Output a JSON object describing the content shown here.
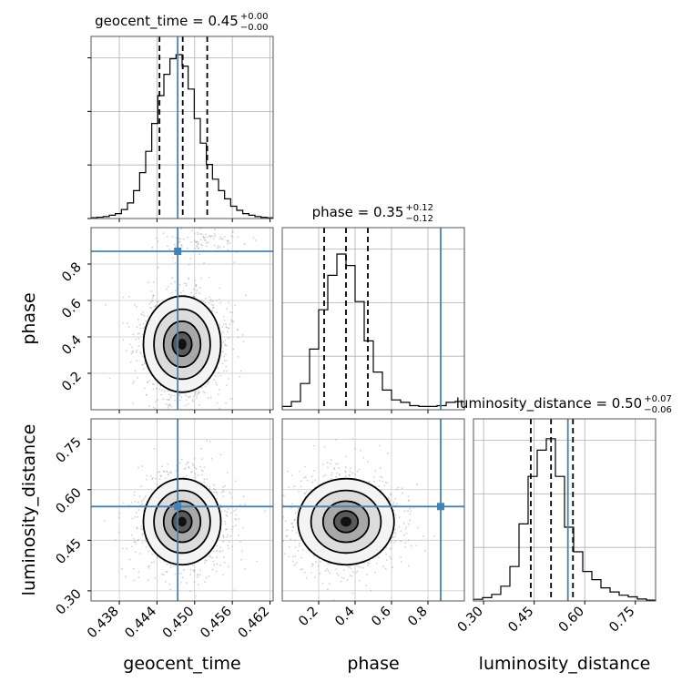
{
  "chart_data": {
    "type": "corner",
    "parameters": [
      "geocent_time",
      "phase",
      "luminosity_distance"
    ],
    "titles": [
      {
        "name": "geocent_time",
        "median": "0.45",
        "upper": "+0.00",
        "lower": "−0.00"
      },
      {
        "name": "phase",
        "median": "0.35",
        "upper": "+0.12",
        "lower": "−0.12"
      },
      {
        "name": "luminosity_distance",
        "median": "0.50",
        "upper": "+0.07",
        "lower": "−0.06"
      }
    ],
    "axes": {
      "geocent_time": {
        "range": [
          0.4335,
          0.4625
        ],
        "ticks": [
          "0.438",
          "0.444",
          "0.450",
          "0.456",
          "0.462"
        ],
        "tick_values": [
          0.438,
          0.444,
          0.45,
          0.456,
          0.462
        ]
      },
      "phase": {
        "range": [
          0.0,
          1.0
        ],
        "ticks": [
          "0.2",
          "0.4",
          "0.6",
          "0.8"
        ],
        "tick_values": [
          0.2,
          0.4,
          0.6,
          0.8
        ]
      },
      "luminosity_distance": {
        "range": [
          0.27,
          0.81
        ],
        "ticks": [
          "0.30",
          "0.45",
          "0.60",
          "0.75"
        ],
        "tick_values": [
          0.3,
          0.45,
          0.6,
          0.75
        ]
      }
    },
    "truths": {
      "geocent_time": 0.4473,
      "phase": 0.87,
      "luminosity_distance": 0.55
    },
    "quantiles": {
      "geocent_time": [
        0.4444,
        0.4481,
        0.452
      ],
      "phase": [
        0.23,
        0.35,
        0.47
      ],
      "luminosity_distance": [
        0.44,
        0.5,
        0.565
      ]
    },
    "histograms": {
      "geocent_time": {
        "bins": 30,
        "counts": [
          0.005,
          0.008,
          0.012,
          0.02,
          0.03,
          0.055,
          0.095,
          0.17,
          0.28,
          0.41,
          0.58,
          0.75,
          0.88,
          0.975,
          1.0,
          0.93,
          0.79,
          0.61,
          0.46,
          0.33,
          0.24,
          0.17,
          0.12,
          0.075,
          0.05,
          0.03,
          0.02,
          0.012,
          0.007,
          0.004
        ]
      },
      "phase": {
        "bins": 20,
        "counts": [
          0.02,
          0.05,
          0.16,
          0.37,
          0.61,
          0.82,
          0.95,
          0.88,
          0.66,
          0.42,
          0.23,
          0.12,
          0.06,
          0.045,
          0.025,
          0.02,
          0.02,
          0.025,
          0.045,
          0.05
        ]
      },
      "luminosity_distance": {
        "bins": 20,
        "counts": [
          0.01,
          0.02,
          0.04,
          0.09,
          0.21,
          0.47,
          0.76,
          0.92,
          0.99,
          0.76,
          0.45,
          0.3,
          0.18,
          0.13,
          0.08,
          0.055,
          0.035,
          0.025,
          0.012,
          0.005
        ]
      }
    },
    "posterior_2d": {
      "phase_vs_geocent_time": {
        "center": [
          0.448,
          0.36
        ],
        "spread": [
          0.0028,
          0.12
        ],
        "tail_near": [
          0.451,
          0.93
        ]
      },
      "luminosity_distance_vs_geocent_time": {
        "center": [
          0.448,
          0.505
        ],
        "spread": [
          0.0028,
          0.058
        ]
      },
      "luminosity_distance_vs_phase": {
        "center": [
          0.35,
          0.505
        ],
        "spread": [
          0.12,
          0.058
        ]
      }
    },
    "truth_color": "#4682b4",
    "line_color": "#000000",
    "grid": true,
    "legend": "none"
  }
}
